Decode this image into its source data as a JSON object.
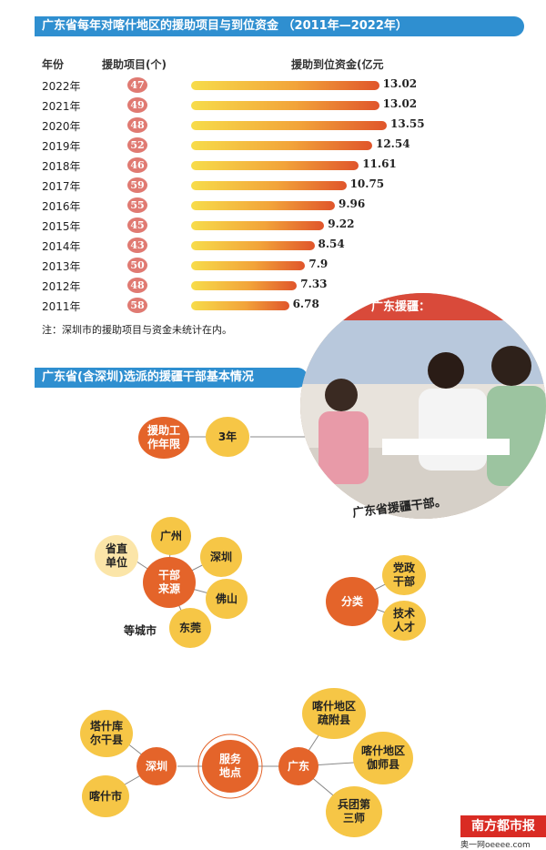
{
  "title": "广东省每年对喀什地区的援助项目与到位资金 （2011年—2022年）",
  "headers": {
    "year": "年份",
    "projects": "援助项目(个)",
    "funds": "援助到位资金(亿元"
  },
  "chart_data": {
    "type": "bar",
    "title": "广东省每年对喀什地区的援助项目与到位资金 （2011年—2022年）",
    "categories": [
      "2022年",
      "2021年",
      "2020年",
      "2019年",
      "2018年",
      "2017年",
      "2016年",
      "2015年",
      "2014年",
      "2013年",
      "2012年",
      "2011年"
    ],
    "projects": [
      "47",
      "49",
      "48",
      "52",
      "46",
      "59",
      "55",
      "45",
      "43",
      "50",
      "48",
      "58"
    ],
    "values": [
      13.02,
      13.02,
      13.55,
      12.54,
      11.61,
      10.75,
      9.96,
      9.22,
      8.54,
      7.9,
      7.33,
      6.78
    ],
    "value_labels": [
      "13.02",
      "13.02",
      "13.55",
      "12.54",
      "11.61",
      "10.75",
      "9.96",
      "9.22",
      "8.54",
      "7.9",
      "7.33",
      "6.78"
    ],
    "xlim": [
      0,
      13.55
    ],
    "colors": {
      "bar_start": "#f7dc4a",
      "bar_end": "#e0552b",
      "badge": "#e07a72"
    }
  },
  "note": "注：深圳市的援助项目与资金未统计在内。",
  "section2_title": "广东省(含深圳)选派的援疆干部基本情况",
  "photo_caption": "广东省援疆干部。",
  "photo_banner_text": "广东援疆：",
  "diagram": {
    "term": {
      "label": "援助工作年限",
      "value": "3年"
    },
    "source": {
      "center": "干部来源",
      "items": [
        "省直单位",
        "广州",
        "深圳",
        "佛山",
        "东莞"
      ],
      "suffix": "等城市"
    },
    "category": {
      "center": "分类",
      "items": [
        "党政干部",
        "技术人才"
      ]
    },
    "location": {
      "center": "服务地点",
      "shenzhen": "深圳",
      "shenzhen_items": [
        "塔什库尔干县",
        "喀什市"
      ],
      "guangdong": "广东",
      "guangdong_items": [
        "喀什地区疏附县",
        "喀什地区伽师县",
        "兵团第三师"
      ]
    }
  },
  "brand": {
    "name": "南方都市报",
    "site": "奥一网oeeee.com"
  },
  "palette": {
    "orange": "#e4642a",
    "yellow": "#f6c646",
    "blue": "#2f8fd0"
  }
}
